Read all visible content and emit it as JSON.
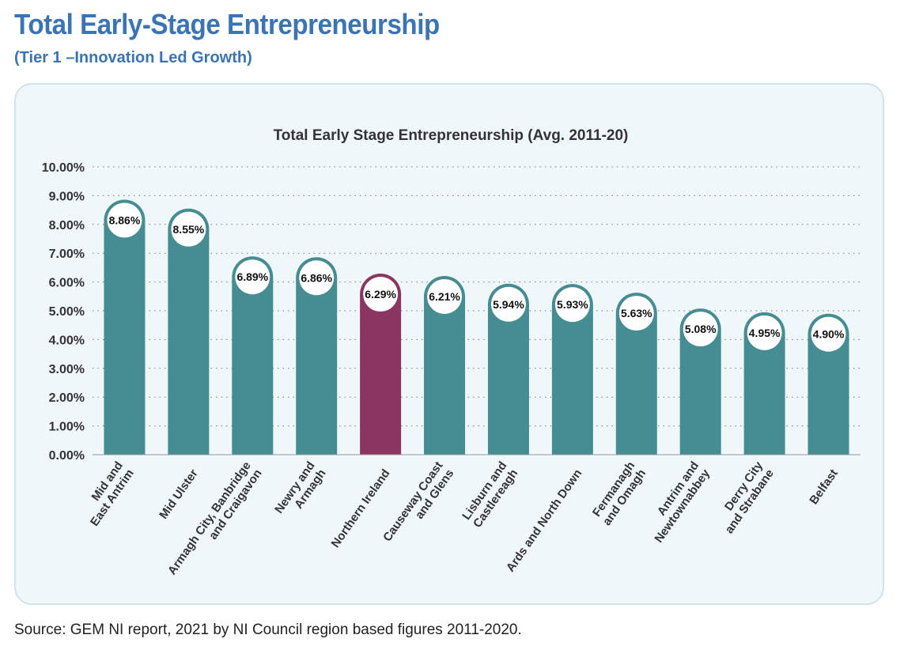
{
  "header": {
    "title": "Total Early-Stage Entrepreneurship",
    "subtitle": "(Tier 1 –Innovation Led Growth)"
  },
  "footer": {
    "source": "Source: GEM NI report, 2021 by NI Council region based figures 2011-2020."
  },
  "colors": {
    "bar": "#468d93",
    "highlight": "#8b3660",
    "panel_bg": "#f0f7fa",
    "heading": "#3a74b4"
  },
  "chart_data": {
    "type": "bar",
    "title": "Total Early Stage Entrepreneurship (Avg. 2011-20)",
    "xlabel": "",
    "ylabel": "",
    "ylim": [
      0,
      10
    ],
    "yticks": [
      "0.00%",
      "1.00%",
      "2.00%",
      "3.00%",
      "4.00%",
      "5.00%",
      "6.00%",
      "7.00%",
      "8.00%",
      "9.00%",
      "10.00%"
    ],
    "grid": true,
    "categories": [
      [
        "Mid and",
        "East Antrim"
      ],
      [
        "Mid Ulster"
      ],
      [
        "Armagh City, Banbridge",
        "and Craigavon"
      ],
      [
        "Newry and",
        "Armagh"
      ],
      [
        "Northern Ireland"
      ],
      [
        "Causeway Coast",
        "and Glens"
      ],
      [
        "Lisburn and",
        "Castlereagh"
      ],
      [
        "Ards and North Down"
      ],
      [
        "Fermanagh",
        "and Omagh"
      ],
      [
        "Antrim and",
        "Newtownabbey"
      ],
      [
        "Derry City",
        "and Strabane"
      ],
      [
        "Belfast"
      ]
    ],
    "values": [
      8.86,
      8.55,
      6.89,
      6.86,
      6.29,
      6.21,
      5.94,
      5.93,
      5.63,
      5.08,
      4.95,
      4.9
    ],
    "data_labels": [
      "8.86%",
      "8.55%",
      "6.89%",
      "6.86%",
      "6.29%",
      "6.21%",
      "5.94%",
      "5.93%",
      "5.63%",
      "5.08%",
      "4.95%",
      "4.90%"
    ],
    "highlight_category": "Northern Ireland"
  }
}
